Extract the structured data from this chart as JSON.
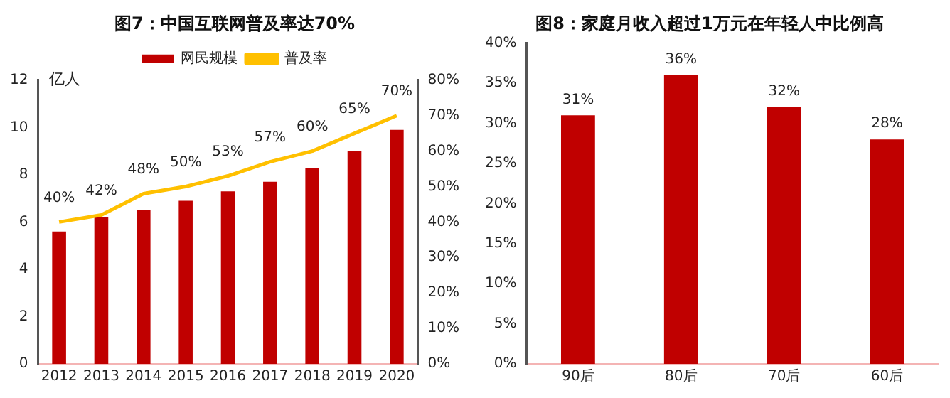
{
  "chart_data": [
    {
      "type": "bar",
      "title": "图7：中国互联网普及率达70%",
      "ylabel": "亿人",
      "categories": [
        "2012",
        "2013",
        "2014",
        "2015",
        "2016",
        "2017",
        "2018",
        "2019",
        "2020"
      ],
      "series": [
        {
          "name": "网民规模",
          "color": "#c00000",
          "values": [
            5.6,
            6.2,
            6.5,
            6.9,
            7.3,
            7.7,
            8.3,
            9.0,
            9.9
          ]
        },
        {
          "name": "普及率",
          "type": "line",
          "axis": "y2",
          "color": "#ffc000",
          "marker": "none",
          "values": [
            40,
            42,
            48,
            50,
            53,
            57,
            60,
            65,
            70
          ],
          "value_labels": [
            "40%",
            "42%",
            "48%",
            "50%",
            "53%",
            "57%",
            "60%",
            "65%",
            "70%"
          ]
        }
      ],
      "ylim": [
        0,
        12
      ],
      "yticks": [
        0,
        2,
        4,
        6,
        8,
        10,
        12
      ],
      "y2lim": [
        0,
        80
      ],
      "y2ticks": [
        {
          "value": 0,
          "label": "0%"
        },
        {
          "value": 10,
          "label": "10%"
        },
        {
          "value": 20,
          "label": "20%"
        },
        {
          "value": 30,
          "label": "30%"
        },
        {
          "value": 40,
          "label": "40%"
        },
        {
          "value": 50,
          "label": "50%"
        },
        {
          "value": 60,
          "label": "60%"
        },
        {
          "value": 70,
          "label": "70%"
        },
        {
          "value": 80,
          "label": "80%"
        }
      ],
      "legend": "top",
      "grid": false
    },
    {
      "type": "bar",
      "title": "图8：家庭月收入超过1万元在年轻人中比例高",
      "categories": [
        "90后",
        "80后",
        "70后",
        "60后"
      ],
      "series": [
        {
          "color": "#c00000",
          "values": [
            31,
            36,
            32,
            28
          ],
          "value_labels": [
            "31%",
            "36%",
            "32%",
            "28%"
          ]
        }
      ],
      "ylim": [
        0,
        40
      ],
      "yticks": [
        {
          "value": 0,
          "label": "0%"
        },
        {
          "value": 5,
          "label": "5%"
        },
        {
          "value": 10,
          "label": "10%"
        },
        {
          "value": 15,
          "label": "15%"
        },
        {
          "value": 20,
          "label": "20%"
        },
        {
          "value": 25,
          "label": "25%"
        },
        {
          "value": 30,
          "label": "30%"
        },
        {
          "value": 35,
          "label": "35%"
        },
        {
          "value": 40,
          "label": "40%"
        }
      ],
      "legend": false,
      "grid": false
    }
  ]
}
